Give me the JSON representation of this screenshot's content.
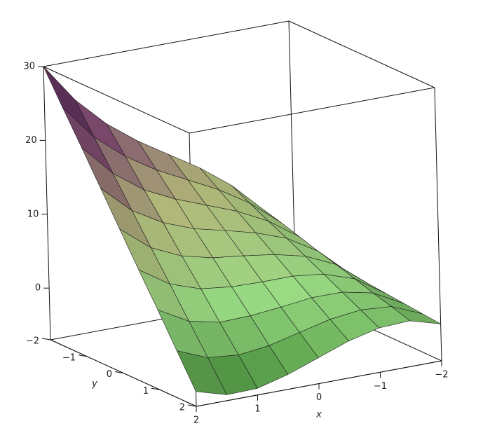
{
  "chart_data": {
    "type": "surface",
    "x_label": "x",
    "y_label": "y",
    "x": [
      -2,
      -1.5,
      -1,
      -0.5,
      0,
      0.5,
      1,
      1.5,
      2
    ],
    "y": [
      -2,
      -1.5,
      -1,
      -0.5,
      0,
      0.5,
      1,
      1.5,
      2
    ],
    "z": [
      [
        0,
        5.3,
        9.3,
        12.4,
        15.0,
        17.6,
        20.7,
        24.7,
        30
      ],
      [
        -0.25,
        4.6,
        8.0,
        10.6,
        12.7,
        14.8,
        17.4,
        20.8,
        25.6
      ],
      [
        -0.5,
        3.8,
        6.7,
        8.8,
        10.4,
        12.0,
        14.0,
        17.0,
        21.3
      ],
      [
        -0.75,
        3.0,
        5.5,
        7.0,
        8.1,
        9.1,
        10.7,
        13.1,
        16.9
      ],
      [
        -1,
        2.3,
        4.2,
        5.2,
        5.8,
        6.3,
        7.3,
        9.2,
        12.5
      ],
      [
        -1.25,
        1.5,
        2.9,
        3.4,
        3.4,
        3.5,
        4.0,
        5.4,
        8.1
      ],
      [
        -1.5,
        0.7,
        1.6,
        1.6,
        1.1,
        0.7,
        0.6,
        1.5,
        3.8
      ],
      [
        -1.75,
        0.0,
        0.3,
        -0.2,
        -1.2,
        -2.2,
        -2.7,
        -2.3,
        -0.6
      ],
      [
        -2,
        -0.8,
        -1.0,
        -2.0,
        -3.5,
        -5.0,
        -6.1,
        -6.2,
        -5.0
      ]
    ],
    "xlim": [
      -2,
      2
    ],
    "ylim": [
      -2,
      2
    ],
    "zlim": [
      -7,
      30
    ],
    "xticks": [
      {
        "value": 2,
        "label": "2"
      },
      {
        "value": 1,
        "label": "1"
      },
      {
        "value": 0,
        "label": "0"
      },
      {
        "value": -1,
        "label": "−1"
      },
      {
        "value": -2,
        "label": "−2"
      }
    ],
    "yticks": [
      {
        "value": -2,
        "label": "−2"
      },
      {
        "value": -1,
        "label": "−1"
      },
      {
        "value": 0,
        "label": "0"
      },
      {
        "value": 1,
        "label": "1"
      },
      {
        "value": 2,
        "label": "2"
      }
    ],
    "zticks": [
      0,
      10,
      20,
      30
    ],
    "colormap": [
      "#3f8a32",
      "#a8f090",
      "#d6dc92",
      "#a0608c",
      "#5e2466"
    ],
    "mesh_color": "#1a1a1a"
  }
}
